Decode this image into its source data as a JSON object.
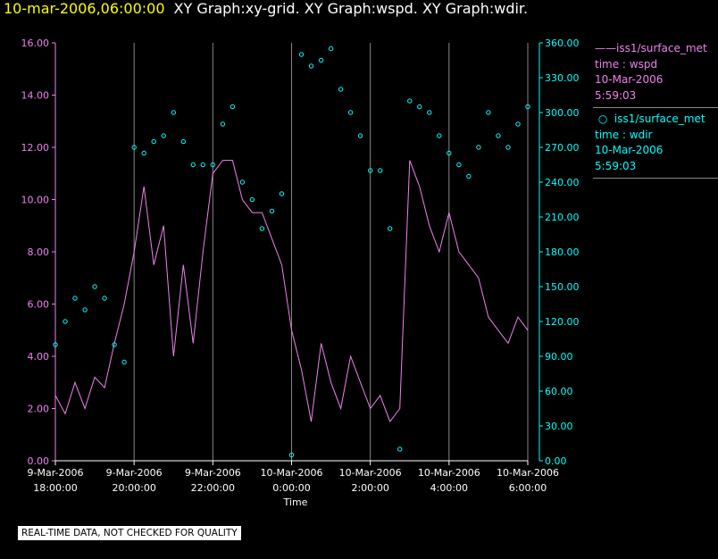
{
  "header": {
    "timestamp": "10-mar-2006,06:00:00",
    "graphs": "XY Graph:xy-grid.  XY Graph:wspd.  XY Graph:wdir."
  },
  "colors": {
    "wspd": "#ee82ee",
    "wdir": "#00ffff",
    "grid": "#888888",
    "background": "#000000",
    "title_time": "#ffff00"
  },
  "legend": {
    "wspd": {
      "source": "iss1/surface_met",
      "var": "time : wspd",
      "date": "10-Mar-2006",
      "time": "5:59:03"
    },
    "wdir": {
      "source": "iss1/surface_met",
      "var": "time : wdir",
      "date": "10-Mar-2006",
      "time": "5:59:03"
    }
  },
  "footer": {
    "qc_note": "REAL-TIME DATA, NOT CHECKED FOR QUALITY"
  },
  "chart_data": {
    "type": "line",
    "xlabel": "Time",
    "x_hour_range": [
      -6.0,
      6.0
    ],
    "x_ticks": [
      {
        "hour": -6,
        "line1": "9-Mar-2006",
        "line2": "18:00:00"
      },
      {
        "hour": -4,
        "line1": "9-Mar-2006",
        "line2": "20:00:00"
      },
      {
        "hour": -2,
        "line1": "9-Mar-2006",
        "line2": "22:00:00"
      },
      {
        "hour": 0,
        "line1": "10-Mar-2006",
        "line2": "0:00:00"
      },
      {
        "hour": 2,
        "line1": "10-Mar-2006",
        "line2": "2:00:00"
      },
      {
        "hour": 4,
        "line1": "10-Mar-2006",
        "line2": "4:00:00"
      },
      {
        "hour": 6,
        "line1": "10-Mar-2006",
        "line2": "6:00:00"
      }
    ],
    "y_left": {
      "range": [
        0,
        16
      ],
      "ticks": [
        "0.00",
        "2.00",
        "4.00",
        "6.00",
        "8.00",
        "10.00",
        "12.00",
        "14.00",
        "16.00"
      ]
    },
    "y_right": {
      "range": [
        0,
        360
      ],
      "ticks": [
        "0.00",
        "30.00",
        "60.00",
        "90.00",
        "120.00",
        "150.00",
        "180.00",
        "210.00",
        "240.00",
        "270.00",
        "300.00",
        "330.00",
        "360.00"
      ]
    },
    "series": [
      {
        "key": "wspd",
        "style": "line",
        "axis": "left",
        "x_hours": [
          -6.0,
          -5.75,
          -5.5,
          -5.25,
          -5.0,
          -4.75,
          -4.5,
          -4.25,
          -4.0,
          -3.75,
          -3.5,
          -3.25,
          -3.0,
          -2.75,
          -2.5,
          -2.25,
          -2.0,
          -1.75,
          -1.5,
          -1.25,
          -1.0,
          -0.75,
          -0.5,
          -0.25,
          0.0,
          0.25,
          0.5,
          0.75,
          1.0,
          1.25,
          1.5,
          1.75,
          2.0,
          2.25,
          2.5,
          2.75,
          3.0,
          3.25,
          3.5,
          3.75,
          4.0,
          4.25,
          4.5,
          4.75,
          5.0,
          5.25,
          5.5,
          5.75,
          6.0
        ],
        "values": [
          2.5,
          1.8,
          3.0,
          2.0,
          3.2,
          2.8,
          4.5,
          6.0,
          8.0,
          10.5,
          7.5,
          9.0,
          4.0,
          7.5,
          4.5,
          8.0,
          11.0,
          11.5,
          11.5,
          10.0,
          9.5,
          9.5,
          8.5,
          7.5,
          5.0,
          3.5,
          1.5,
          4.5,
          3.0,
          2.0,
          4.0,
          3.0,
          2.0,
          2.5,
          1.5,
          2.0,
          11.5,
          10.5,
          9.0,
          8.0,
          9.5,
          8.0,
          7.5,
          7.0,
          5.5,
          5.0,
          4.5,
          5.5,
          5.0
        ]
      },
      {
        "key": "wdir",
        "style": "scatter",
        "axis": "right",
        "x_hours": [
          -6.0,
          -5.75,
          -5.5,
          -5.25,
          -5.0,
          -4.75,
          -4.5,
          -4.25,
          -4.0,
          -3.75,
          -3.5,
          -3.25,
          -3.0,
          -2.75,
          -2.5,
          -2.25,
          -2.0,
          -1.75,
          -1.5,
          -1.25,
          -1.0,
          -0.75,
          -0.5,
          -0.25,
          0.0,
          0.25,
          0.5,
          0.75,
          1.0,
          1.25,
          1.5,
          1.75,
          2.0,
          2.25,
          2.5,
          2.75,
          3.0,
          3.25,
          3.5,
          3.75,
          4.0,
          4.25,
          4.5,
          4.75,
          5.0,
          5.25,
          5.5,
          5.75,
          6.0
        ],
        "values": [
          100,
          120,
          140,
          130,
          150,
          140,
          100,
          85,
          270,
          265,
          275,
          280,
          300,
          275,
          255,
          255,
          255,
          290,
          305,
          240,
          225,
          200,
          215,
          230,
          5,
          350,
          340,
          345,
          355,
          320,
          300,
          280,
          250,
          250,
          200,
          10,
          310,
          305,
          300,
          280,
          265,
          255,
          245,
          270,
          300,
          280,
          270,
          290,
          305
        ]
      }
    ]
  }
}
